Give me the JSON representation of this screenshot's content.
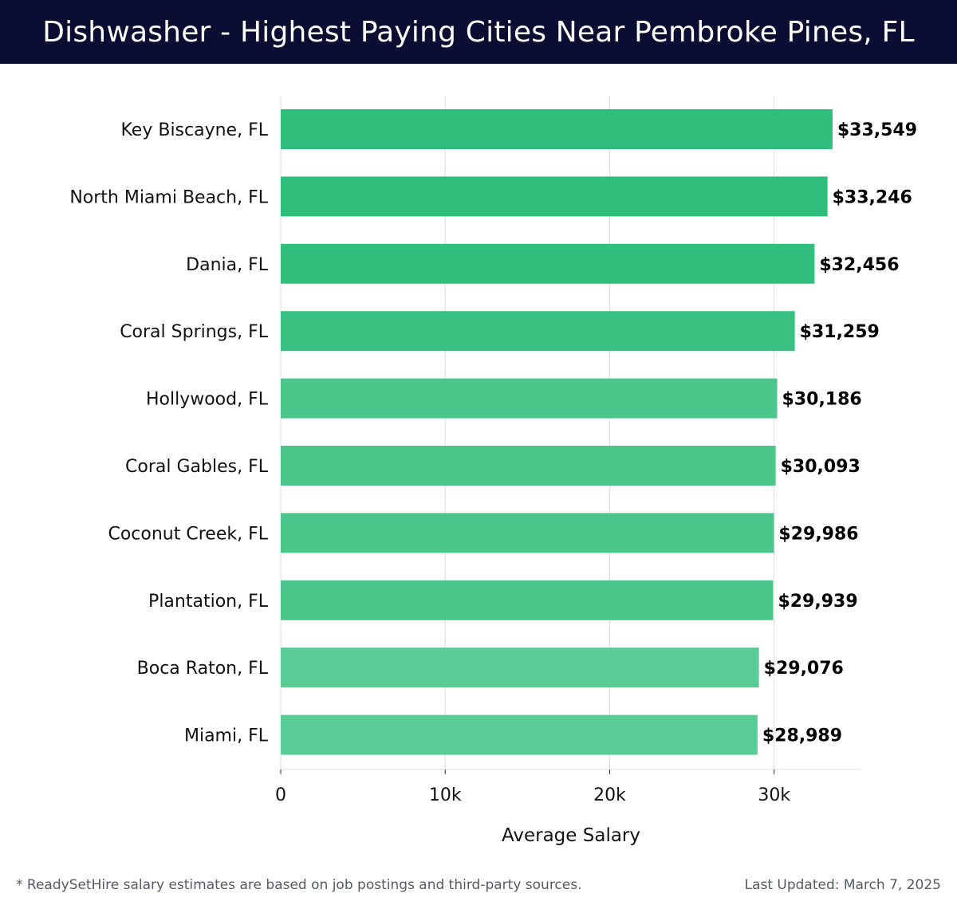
{
  "header": {
    "title": "Dishwasher - Highest Paying Cities Near Pembroke Pines, FL"
  },
  "chart_data": {
    "type": "bar",
    "orientation": "horizontal",
    "title": "Dishwasher - Highest Paying Cities Near Pembroke Pines, FL",
    "xlabel": "Average Salary",
    "ylabel": "",
    "categories": [
      "Key Biscayne, FL",
      "North Miami Beach, FL",
      "Dania, FL",
      "Coral Springs, FL",
      "Hollywood, FL",
      "Coral Gables, FL",
      "Coconut Creek, FL",
      "Plantation, FL",
      "Boca Raton, FL",
      "Miami, FL"
    ],
    "values": [
      33549,
      33246,
      32456,
      31259,
      30186,
      30093,
      29986,
      29939,
      29076,
      28989
    ],
    "value_labels": [
      "$33,549",
      "$33,246",
      "$32,456",
      "$31,259",
      "$30,186",
      "$30,093",
      "$29,986",
      "$29,939",
      "$29,076",
      "$28,989"
    ],
    "bar_colors": [
      "#2ebd7a",
      "#2ebd7a",
      "#32bf7d",
      "#38c180",
      "#4cc78c",
      "#4cc78c",
      "#4cc78c",
      "#4cc78c",
      "#59cb95",
      "#59cb95"
    ],
    "xticks": [
      0,
      10000,
      20000,
      30000
    ],
    "xtick_labels": [
      "0",
      "10k",
      "20k",
      "30k"
    ],
    "xlim": [
      0,
      35300
    ],
    "grid": true
  },
  "footer": {
    "note": "* ReadySetHire salary estimates are based on job postings and third-party sources.",
    "updated": "Last Updated: March 7, 2025"
  },
  "colors": {
    "header_bg": "#0b0d33",
    "grid": "#dddddd",
    "label_text": "#111111"
  }
}
